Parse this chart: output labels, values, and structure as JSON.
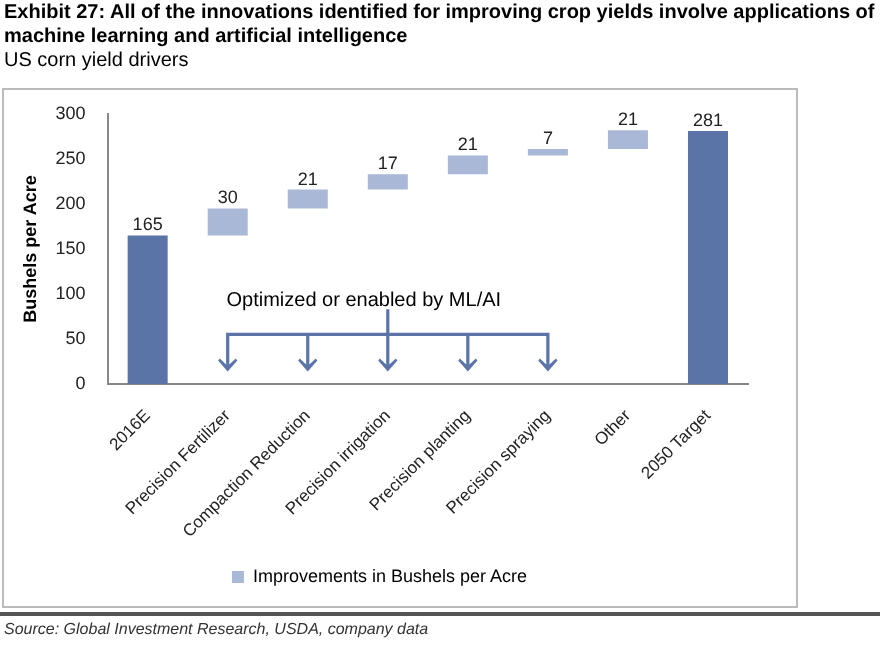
{
  "chart_data": {
    "type": "bar",
    "title": "Exhibit 27: All of the innovations identified for improving crop yields involve applications of machine learning and artificial intelligence",
    "subtitle": "US corn yield drivers",
    "ylabel": "Bushels per Acre",
    "categories": [
      "2016E",
      "Precision Fertilizer",
      "Compaction Reduction",
      "Precision irrigation",
      "Precision planting",
      "Precision spraying",
      "Other",
      "2050 Target"
    ],
    "series": [
      {
        "name": "Improvements in Bushels per Acre",
        "color": "#a9b8d6",
        "colors": [
          "#5b74a8",
          "#a9b8d6",
          "#a9b8d6",
          "#a9b8d6",
          "#a9b8d6",
          "#a9b8d6",
          "#a9b8d6",
          "#5b74a8"
        ],
        "values": [
          165,
          30,
          21,
          17,
          21,
          7,
          21,
          281
        ],
        "base": [
          0,
          165,
          195,
          216,
          233,
          254,
          261,
          0
        ]
      }
    ],
    "ylim": [
      0,
      300
    ],
    "yticks": [
      0,
      50,
      100,
      150,
      200,
      250,
      300
    ],
    "grid": false,
    "legend": "bottom",
    "data_labels": true,
    "annotations": [
      "Optimized or enabled by ML/AI",
      "Source: Global Investment Research, USDA, company data"
    ]
  }
}
